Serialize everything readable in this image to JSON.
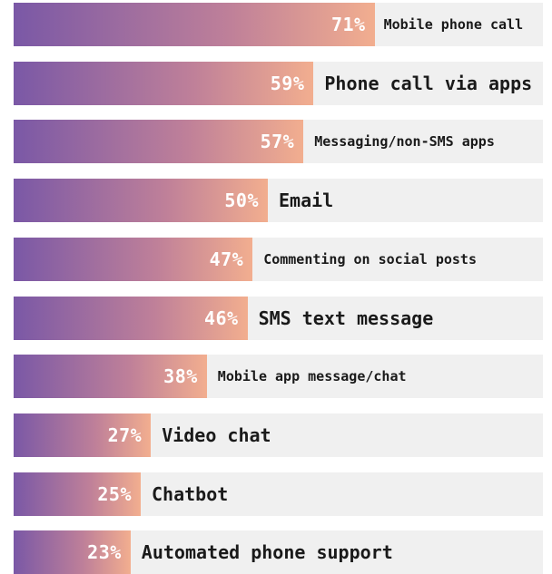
{
  "chart_data": {
    "type": "bar",
    "orientation": "horizontal",
    "title": "",
    "xlabel": "",
    "ylabel": "",
    "xlim": [
      0,
      100
    ],
    "grid": false,
    "legend": "none",
    "value_suffix": "%",
    "categories": [
      "Mobile phone call",
      "Phone call via apps",
      "Messaging/non-SMS apps",
      "Email",
      "Commenting on social posts",
      "SMS text message",
      "Mobile app message/chat",
      "Video chat",
      "Chatbot",
      "Automated phone support"
    ],
    "values": [
      71,
      59,
      57,
      50,
      47,
      46,
      38,
      27,
      25,
      23
    ],
    "value_labels": [
      "71%",
      "59%",
      "57%",
      "50%",
      "47%",
      "46%",
      "38%",
      "27%",
      "25%",
      "23%"
    ]
  },
  "colors": {
    "bar_start": "#7a58a6",
    "bar_mid": "#bf8099",
    "bar_end": "#f2ae8f",
    "track": "#f0f0f0",
    "value_text": "#ffffff",
    "label_text": "#1a1a1a"
  }
}
